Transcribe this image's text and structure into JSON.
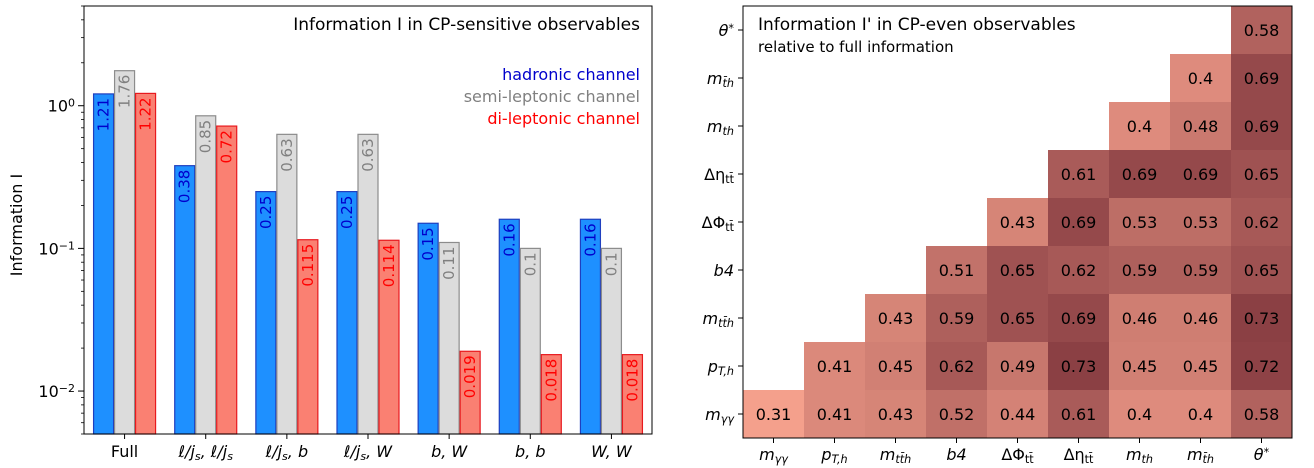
{
  "chart_data": [
    {
      "type": "bar",
      "title": "Information I in CP-sensitive observables",
      "ylabel": "Information I",
      "yscale": "log",
      "ylim": [
        0.005,
        5
      ],
      "y_ticks": [
        {
          "value": 0.01,
          "base": "10",
          "exp": "−2"
        },
        {
          "value": 0.1,
          "base": "10",
          "exp": "−1"
        },
        {
          "value": 1,
          "base": "10",
          "exp": "0"
        }
      ],
      "categories": [
        "Full",
        "ℓ/js, ℓ/js",
        "ℓ/js, b",
        "ℓ/js, W",
        "b, W",
        "b, b",
        "W, W"
      ],
      "series": [
        {
          "name": "hadronic channel",
          "color": "#1e90ff",
          "edge": "#1f3fbf",
          "label_color": "#0000cc",
          "values": [
            1.21,
            0.38,
            0.25,
            0.25,
            0.15,
            0.16,
            0.16
          ],
          "labels": [
            "1.21",
            "0.38",
            "0.25",
            "0.25",
            "0.15",
            "0.16",
            "0.16"
          ]
        },
        {
          "name": "semi-leptonic channel",
          "color": "#dcdcdc",
          "edge": "#8c8c8c",
          "label_color": "#808080",
          "values": [
            1.76,
            0.85,
            0.63,
            0.63,
            0.11,
            0.1,
            0.1
          ],
          "labels": [
            "1.76",
            "0.85",
            "0.63",
            "0.63",
            "0.11",
            "0.1",
            "0.1"
          ]
        },
        {
          "name": "di-leptonic channel",
          "color": "#fa8072",
          "edge": "#e8191e",
          "label_color": "#ff0000",
          "values": [
            1.22,
            0.72,
            0.115,
            0.114,
            0.019,
            0.018,
            0.018
          ],
          "labels": [
            "1.22",
            "0.72",
            "0.115",
            "0.114",
            "0.019",
            "0.018",
            "0.018"
          ]
        }
      ],
      "legend_placement": "upper-right"
    },
    {
      "type": "heatmap",
      "title": "Information I' in CP-even observables",
      "subtitle": "relative to full information",
      "x_labels": [
        "m_γγ",
        "p_T,h",
        "m_tt̄h",
        "b4",
        "ΔΦ_tt̄",
        "Δη_tt̄",
        "m_th",
        "m_t̄h",
        "θ*"
      ],
      "y_labels": [
        "θ*",
        "m_t̄h",
        "m_th",
        "Δη_tt̄",
        "ΔΦ_tt̄",
        "b4",
        "m_tt̄h",
        "p_T,h",
        "m_γγ"
      ],
      "values": [
        [
          null,
          null,
          null,
          null,
          null,
          null,
          null,
          null,
          0.58
        ],
        [
          null,
          null,
          null,
          null,
          null,
          null,
          null,
          0.4,
          0.69
        ],
        [
          null,
          null,
          null,
          null,
          null,
          null,
          0.4,
          0.48,
          0.69
        ],
        [
          null,
          null,
          null,
          null,
          null,
          0.61,
          0.69,
          0.69,
          0.65
        ],
        [
          null,
          null,
          null,
          null,
          0.43,
          0.69,
          0.53,
          0.53,
          0.62
        ],
        [
          null,
          null,
          null,
          0.51,
          0.65,
          0.62,
          0.59,
          0.59,
          0.65
        ],
        [
          null,
          null,
          0.43,
          0.59,
          0.65,
          0.69,
          0.46,
          0.46,
          0.73
        ],
        [
          null,
          0.41,
          0.45,
          0.62,
          0.49,
          0.73,
          0.45,
          0.45,
          0.72
        ],
        [
          0.31,
          0.41,
          0.43,
          0.52,
          0.44,
          0.61,
          0.4,
          0.4,
          0.58
        ]
      ],
      "colormap": {
        "low": "#f4a08c",
        "high": "#8b4044",
        "vmin": 0.31,
        "vmax": 0.73
      }
    }
  ]
}
